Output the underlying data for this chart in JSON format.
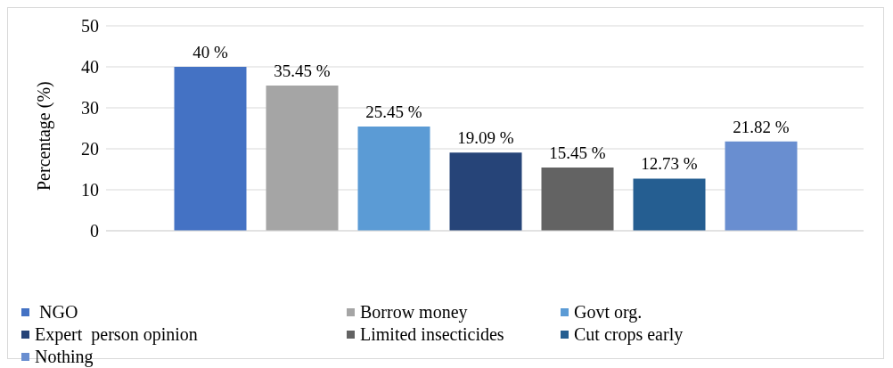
{
  "chart_data": {
    "type": "bar",
    "ylabel": "Percentage (%)",
    "categories": [
      null
    ],
    "series": [
      {
        "name": " NGO",
        "color": "#4472c4",
        "values": [
          40
        ],
        "value_labels": [
          "40 %"
        ]
      },
      {
        "name": "Borrow money",
        "color": "#a5a5a5",
        "values": [
          35.45
        ],
        "value_labels": [
          "35.45 %"
        ]
      },
      {
        "name": "Govt org.",
        "color": "#5b9bd5",
        "values": [
          25.45
        ],
        "value_labels": [
          "25.45 %"
        ]
      },
      {
        "name": "Expert  person opinion",
        "color": "#264478",
        "values": [
          19.09
        ],
        "value_labels": [
          "19.09 %"
        ]
      },
      {
        "name": "Limited insecticides",
        "color": "#636363",
        "values": [
          15.45
        ],
        "value_labels": [
          "15.45 %"
        ]
      },
      {
        "name": "Cut crops early",
        "color": "#255e91",
        "values": [
          12.73
        ],
        "value_labels": [
          "12.73 %"
        ]
      },
      {
        "name": "Nothing",
        "color": "#698ed0",
        "values": [
          21.82
        ],
        "value_labels": [
          "21.82 %"
        ]
      }
    ],
    "ylim": [
      0,
      50
    ],
    "yticks": [
      0,
      10,
      20,
      30,
      40,
      50
    ],
    "grid": "y",
    "legend": "bottom"
  }
}
